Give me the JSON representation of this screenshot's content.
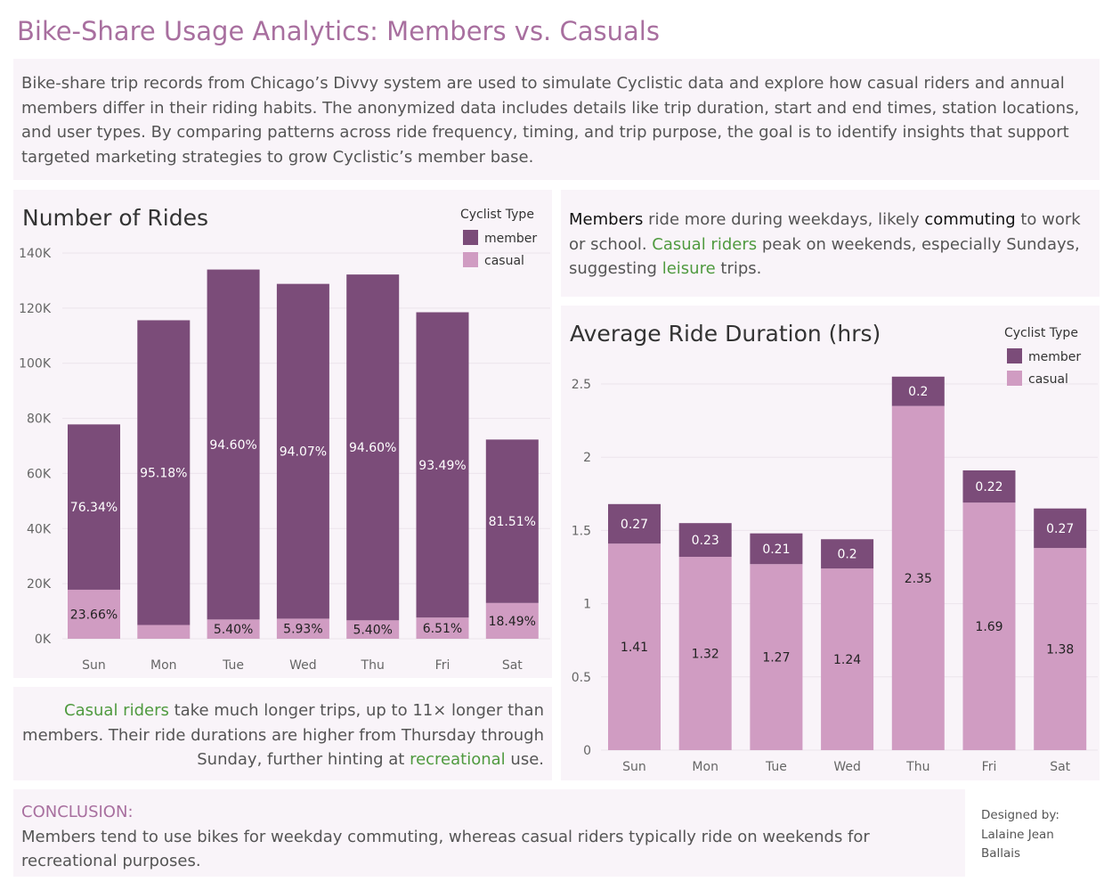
{
  "title": "Bike-Share Usage Analytics: Members vs. Casuals",
  "intro": "Bike-share trip records from Chicago’s Divvy system are used to simulate Cyclistic data and explore how casual riders and annual members differ in their riding habits. The anonymized data includes details like trip duration, start and end times, station locations, and user types. By comparing patterns across ride frequency, timing, and trip purpose, the goal is to identify insights that support targeted marketing strategies to grow Cyclistic’s member base.",
  "colors": {
    "member": "#7b4c79",
    "casual": "#d09cc2",
    "accent_green": "#4f9a3f",
    "title_pink": "#a86f9f"
  },
  "members_note": {
    "p1": "Members",
    "p2": " ride more during weekdays, likely ",
    "p3": "commuting",
    "p4": " to work or school. ",
    "p5": "Casual riders",
    "p6": " peak on weekends, especially Sundays, suggesting ",
    "p7": "leisure",
    "p8": " trips."
  },
  "casual_note": {
    "p1": "Casual riders",
    "p2": " take much longer trips, up to 11× longer than members. Their ride durations are higher from Thursday through Sunday, further hinting at ",
    "p3": "recreational",
    "p4": " use."
  },
  "conclusion": {
    "title": "CONCLUSION:",
    "text": "Members tend to use bikes for weekday commuting, whereas casual riders typically ride on weekends for recreational purposes."
  },
  "credit": {
    "line1": "Designed by:",
    "line2": "Lalaine Jean",
    "line3": "Ballais"
  },
  "chart_data": [
    {
      "type": "bar",
      "stacked": true,
      "title": "Number of Rides",
      "categories": [
        "Sun",
        "Mon",
        "Tue",
        "Wed",
        "Thu",
        "Fri",
        "Sat"
      ],
      "ylim": [
        0,
        140000
      ],
      "yticks": [
        0,
        20000,
        40000,
        60000,
        80000,
        100000,
        120000,
        140000
      ],
      "ytick_labels": [
        "0K",
        "20K",
        "40K",
        "60K",
        "80K",
        "100K",
        "120K",
        "140K"
      ],
      "legend_title": "Cyclist Type",
      "legend_position": "top-right",
      "grid": true,
      "series": [
        {
          "name": "casual",
          "values": [
            17800,
            5000,
            7000,
            7300,
            6700,
            7700,
            13000
          ],
          "labels": [
            "23.66%",
            "",
            "5.40%",
            "5.93%",
            "5.40%",
            "6.51%",
            "18.49%"
          ]
        },
        {
          "name": "member",
          "values": [
            60000,
            110600,
            127000,
            121500,
            125500,
            110800,
            59300
          ],
          "labels": [
            "76.34%",
            "95.18%",
            "94.60%",
            "94.07%",
            "94.60%",
            "93.49%",
            "81.51%"
          ]
        }
      ]
    },
    {
      "type": "bar",
      "stacked": true,
      "title": "Average Ride Duration (hrs)",
      "categories": [
        "Sun",
        "Mon",
        "Tue",
        "Wed",
        "Thu",
        "Fri",
        "Sat"
      ],
      "ylim": [
        0,
        2.5
      ],
      "yticks": [
        0,
        0.5,
        1,
        1.5,
        2,
        2.5
      ],
      "ytick_labels": [
        "0",
        "0.5",
        "1",
        "1.5",
        "2",
        "2.5"
      ],
      "legend_title": "Cyclist Type",
      "legend_position": "top-right",
      "grid": true,
      "series": [
        {
          "name": "casual",
          "values": [
            1.41,
            1.32,
            1.27,
            1.24,
            2.35,
            1.69,
            1.38
          ],
          "labels": [
            "1.41",
            "1.32",
            "1.27",
            "1.24",
            "2.35",
            "1.69",
            "1.38"
          ]
        },
        {
          "name": "member",
          "values": [
            0.27,
            0.23,
            0.21,
            0.2,
            0.2,
            0.22,
            0.27
          ],
          "labels": [
            "0.27",
            "0.23",
            "0.21",
            "0.2",
            "0.2",
            "0.22",
            "0.27"
          ]
        }
      ]
    }
  ]
}
